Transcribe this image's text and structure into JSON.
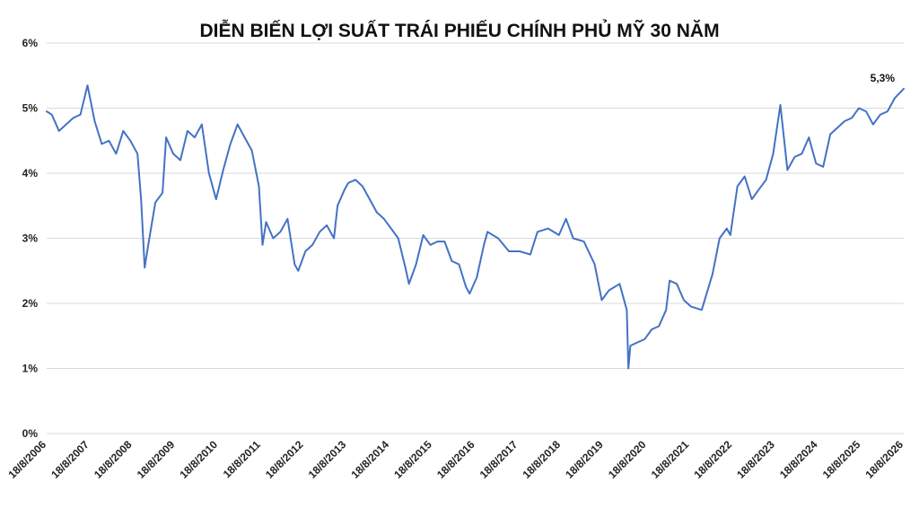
{
  "chart_data": {
    "type": "line",
    "title": "DIỄN BIẾN LỢI SUẤT TRÁI PHIẾU CHÍNH PHỦ MỸ 30 NĂM",
    "xlabel": "",
    "ylabel": "",
    "ylim": [
      0,
      6
    ],
    "y_ticks": [
      "0%",
      "1%",
      "2%",
      "3%",
      "4%",
      "5%",
      "6%"
    ],
    "x_ticks": [
      "18/8/2006",
      "18/8/2007",
      "18/8/2008",
      "18/8/2009",
      "18/8/2010",
      "18/8/2011",
      "18/8/2012",
      "18/8/2013",
      "18/8/2014",
      "18/8/2015",
      "18/8/2016",
      "18/8/2017",
      "18/8/2018",
      "18/8/2019",
      "18/8/2020",
      "18/8/2021",
      "18/8/2022",
      "18/8/2023",
      "18/8/2024",
      "18/8/2025",
      "18/8/2026"
    ],
    "grid": true,
    "legend": "none",
    "line_color": "#4472c4",
    "annotation": "5,3%",
    "x": [
      "18/8/2006",
      "2006-10",
      "2006-12",
      "2007-02",
      "2007-04",
      "2007-06",
      "2007-08",
      "2007-10",
      "2007-12",
      "2008-02",
      "2008-04",
      "2008-06",
      "2008-08",
      "2008-10",
      "2008-11",
      "2008-12",
      "2009-01",
      "2009-03",
      "2009-05",
      "2009-06",
      "2009-08",
      "2009-10",
      "2009-12",
      "2010-02",
      "2010-04",
      "2010-06",
      "2010-08",
      "2010-10",
      "2010-12",
      "2011-02",
      "2011-04",
      "2011-06",
      "2011-08",
      "2011-09",
      "2011-10",
      "2011-12",
      "2012-02",
      "2012-04",
      "2012-06",
      "2012-07",
      "2012-09",
      "2012-11",
      "2013-01",
      "2013-03",
      "2013-05",
      "2013-06",
      "2013-08",
      "2013-09",
      "2013-11",
      "2014-01",
      "2014-03",
      "2014-05",
      "2014-07",
      "2014-09",
      "2014-11",
      "2015-01",
      "2015-02",
      "2015-04",
      "2015-06",
      "2015-08",
      "2015-10",
      "2015-12",
      "2016-02",
      "2016-04",
      "2016-06",
      "2016-07",
      "2016-09",
      "2016-11",
      "2016-12",
      "2017-03",
      "2017-06",
      "2017-09",
      "2017-12",
      "2018-02",
      "2018-05",
      "2018-08",
      "2018-10",
      "2018-12",
      "2019-03",
      "2019-06",
      "2019-08",
      "2019-10",
      "2020-01",
      "2020-03",
      "2020-03-15",
      "2020-04",
      "2020-06",
      "2020-08",
      "2020-10",
      "2020-12",
      "2021-02",
      "2021-03",
      "2021-05",
      "2021-07",
      "2021-09",
      "2021-12",
      "2022-03",
      "2022-05",
      "2022-07",
      "2022-08",
      "2022-10",
      "2022-12",
      "2023-02",
      "2023-04",
      "2023-06",
      "2023-08",
      "2023-10",
      "2023-12",
      "2024-02",
      "2024-04",
      "2024-06",
      "2024-08",
      "2024-10",
      "2024-12",
      "2025-02",
      "2025-04",
      "2025-06",
      "2025-08",
      "2025-10",
      "2025-12",
      "2026-02",
      "2026-04",
      "2026-06",
      "18/8/2026"
    ],
    "y": [
      4.95,
      4.9,
      4.65,
      4.75,
      4.85,
      4.9,
      5.35,
      4.8,
      4.45,
      4.5,
      4.3,
      4.65,
      4.5,
      4.3,
      3.6,
      2.55,
      2.9,
      3.55,
      3.7,
      4.55,
      4.3,
      4.2,
      4.65,
      4.55,
      4.75,
      4.0,
      3.6,
      4.05,
      4.45,
      4.75,
      4.55,
      4.35,
      3.8,
      2.9,
      3.25,
      3.0,
      3.1,
      3.3,
      2.6,
      2.5,
      2.8,
      2.9,
      3.1,
      3.2,
      3.0,
      3.5,
      3.75,
      3.85,
      3.9,
      3.8,
      3.6,
      3.4,
      3.3,
      3.15,
      3.0,
      2.55,
      2.3,
      2.6,
      3.05,
      2.9,
      2.95,
      2.95,
      2.65,
      2.6,
      2.25,
      2.15,
      2.4,
      2.9,
      3.1,
      3.0,
      2.8,
      2.8,
      2.75,
      3.1,
      3.15,
      3.05,
      3.3,
      3.0,
      2.95,
      2.6,
      2.05,
      2.2,
      2.3,
      1.9,
      1.0,
      1.35,
      1.4,
      1.45,
      1.6,
      1.65,
      1.9,
      2.35,
      2.3,
      2.05,
      1.95,
      1.9,
      2.45,
      3.0,
      3.15,
      3.05,
      3.8,
      3.95,
      3.6,
      3.75,
      3.9,
      4.3,
      5.05,
      4.05,
      4.25,
      4.3,
      4.55,
      4.15,
      4.1,
      4.6,
      4.7,
      4.8,
      4.85,
      5.0,
      4.95,
      4.75,
      4.9,
      4.95,
      5.15,
      5.3
    ]
  }
}
